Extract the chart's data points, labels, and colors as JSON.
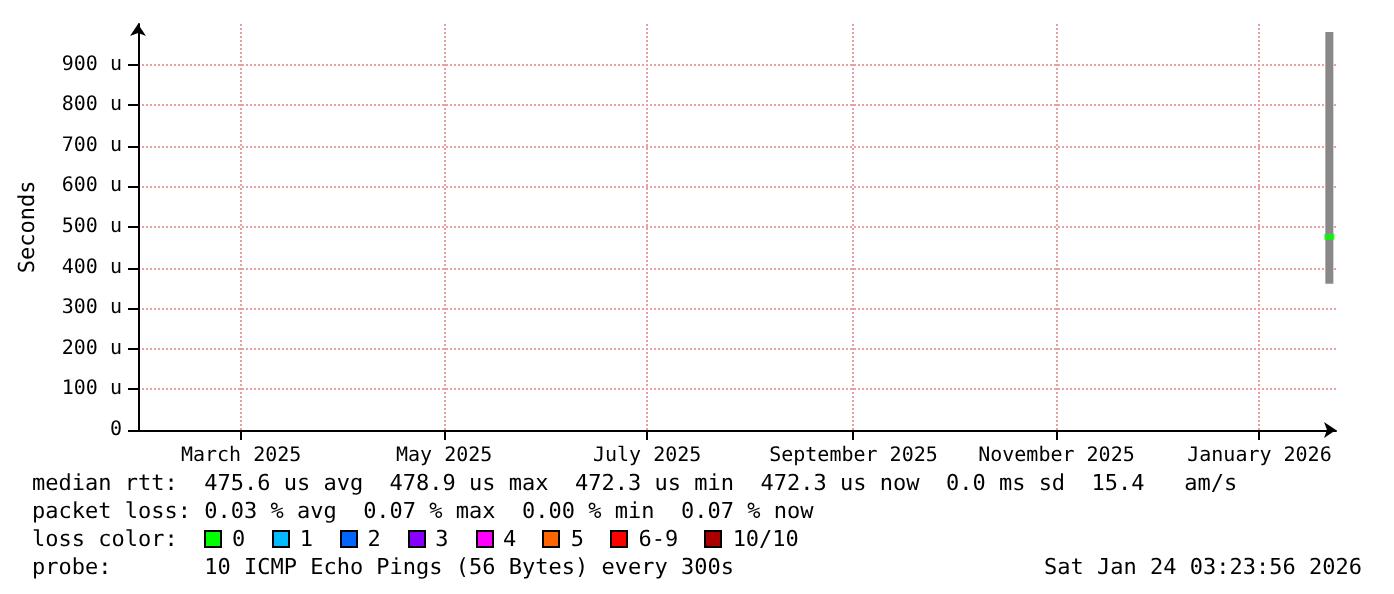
{
  "chart_data": {
    "type": "bar",
    "ylabel": "Seconds",
    "xlim": [
      "2025-01-29",
      "2026-01-24"
    ],
    "xticks": [
      {
        "value": "2025-03-01",
        "label": "March 2025"
      },
      {
        "value": "2025-05-01",
        "label": "May 2025"
      },
      {
        "value": "2025-07-01",
        "label": "July 2025"
      },
      {
        "value": "2025-09-01",
        "label": "September 2025"
      },
      {
        "value": "2025-11-01",
        "label": "November 2025"
      },
      {
        "value": "2026-01-01",
        "label": "January 2026"
      }
    ],
    "ylim": [
      0,
      1000
    ],
    "yticks": [
      0,
      {
        "value": 100,
        "label": "100 u"
      },
      {
        "value": 200,
        "label": "200 u"
      },
      {
        "value": 300,
        "label": "300 u"
      },
      {
        "value": 400,
        "label": "400 u"
      },
      {
        "value": 500,
        "label": "500 u"
      },
      {
        "value": 600,
        "label": "600 u"
      },
      {
        "value": 700,
        "label": "700 u"
      },
      {
        "value": 800,
        "label": "800 u"
      },
      {
        "value": 900,
        "label": "900 u"
      }
    ],
    "grid": true,
    "series": [
      {
        "color": "#888888",
        "x": [
          "2026-01-22"
        ],
        "base": [
          360
        ],
        "values": [
          620
        ]
      },
      {
        "type": "scatter",
        "color": "#00ff00",
        "marker": "square",
        "x": [
          "2026-01-22"
        ],
        "values": [
          476
        ]
      }
    ],
    "annotations": [
      "median rtt:  475.6 us avg  478.9 us max  472.3 us min  472.3 us now  0.0 ms sd  15.4   am/s",
      "packet loss: 0.03 % avg  0.07 % max  0.00 % min  0.07 % now",
      "loss color:",
      "0",
      "1",
      "2",
      "3",
      "4",
      "5",
      "6-9",
      "10/10",
      "probe:       10 ICMP Echo Pings (56 Bytes) every 300s",
      "Sat Jan 24 03:23:56 2026"
    ]
  }
}
